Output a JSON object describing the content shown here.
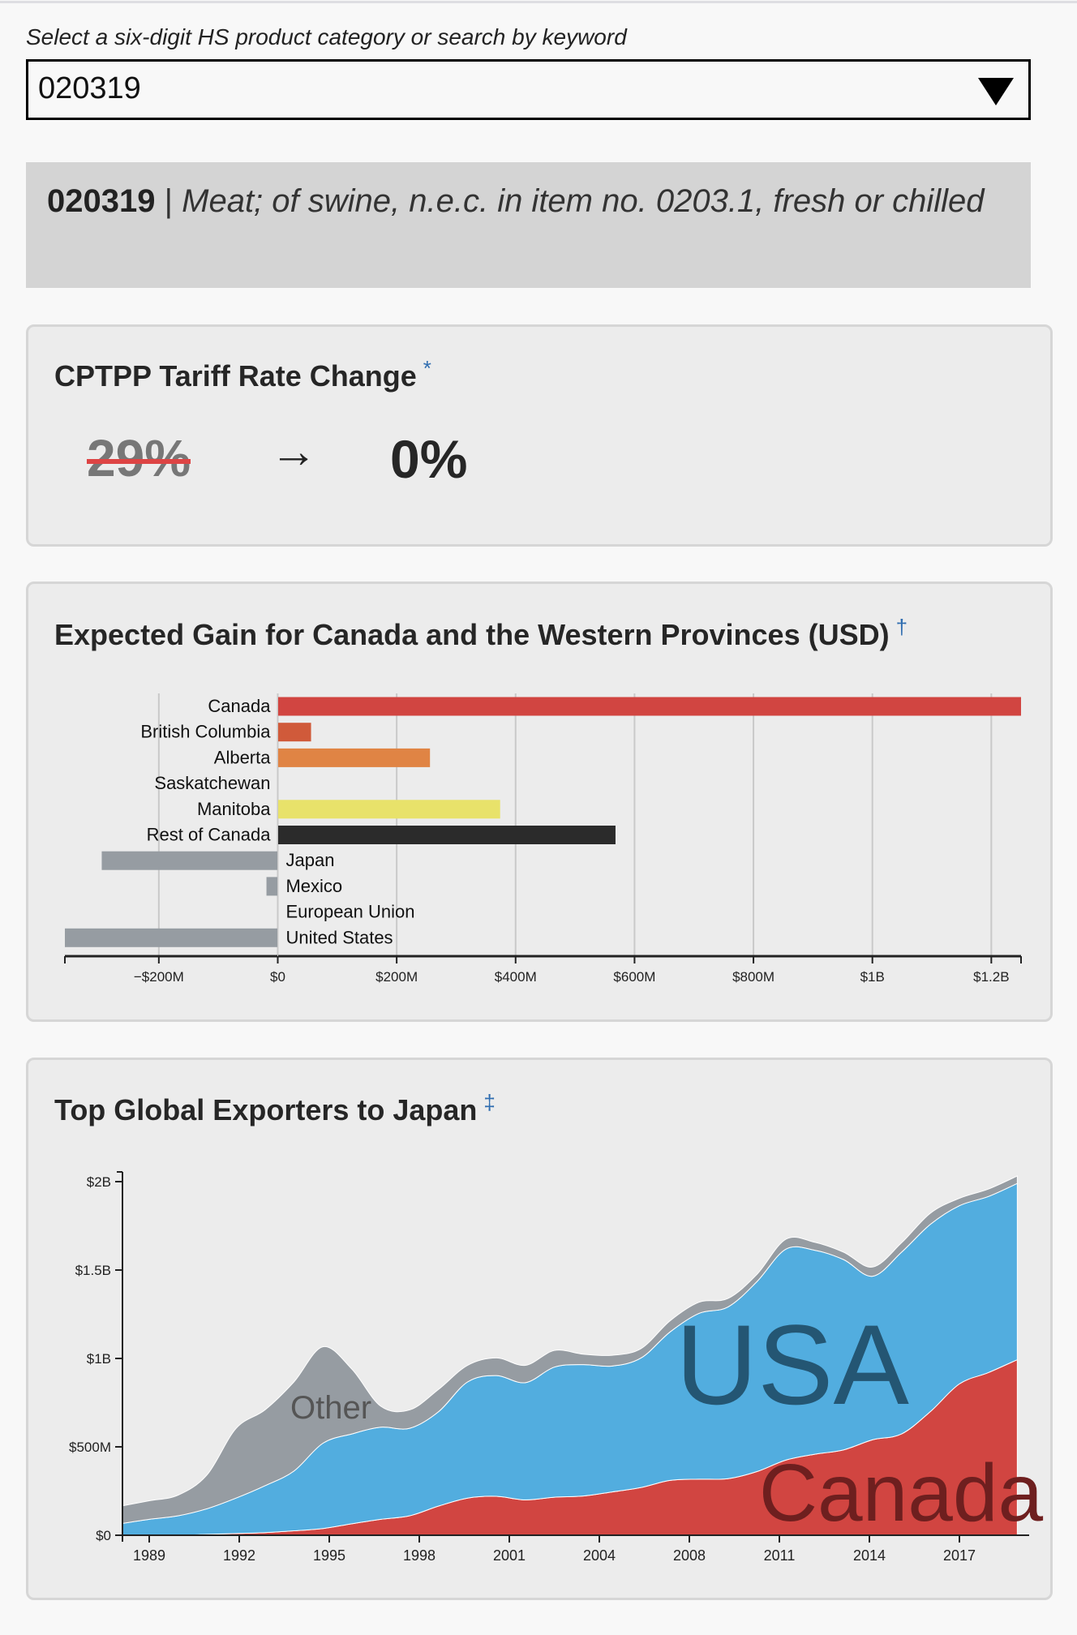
{
  "selector": {
    "label": "Select a six-digit HS product category or search by keyword",
    "value": "020319"
  },
  "product": {
    "code": "020319",
    "separator": "|",
    "description": "Meat; of swine, n.e.c. in item no. 0203.1, fresh or chilled"
  },
  "tariff_card": {
    "title": "CPTPP Tariff Rate Change",
    "note_mark": "*",
    "old_rate": "29%",
    "arrow": "→",
    "new_rate": "0%"
  },
  "gain_card": {
    "title": "Expected Gain for Canada and the Western Provinces (USD)",
    "note_mark": "†"
  },
  "exporters_card": {
    "title": "Top Global Exporters to Japan",
    "note_mark": "‡"
  },
  "colors": {
    "canada": "#d14541",
    "british_columbia": "#d05a3a",
    "alberta": "#e08444",
    "saskatchewan": "#e8b84a",
    "manitoba": "#e8e26a",
    "rest_of_canada": "#2b2b2b",
    "other_countries": "#969ca2",
    "usa": "#52addf",
    "usa_label": "#245673",
    "canada_label": "#6e1f1f",
    "other_label": "#555555"
  },
  "chart_data": [
    {
      "type": "bar",
      "orientation": "horizontal",
      "title": "Expected Gain for Canada and the Western Provinces (USD)",
      "categories": [
        "Canada",
        "British Columbia",
        "Alberta",
        "Saskatchewan",
        "Manitoba",
        "Rest of Canada",
        "Japan",
        "Mexico",
        "European Union",
        "United States"
      ],
      "values": [
        1250,
        56,
        256,
        0,
        374,
        568,
        -296,
        -19,
        0,
        -358
      ],
      "units": "USD millions",
      "color_keys": [
        "canada",
        "british_columbia",
        "alberta",
        "saskatchewan",
        "manitoba",
        "rest_of_canada",
        "other_countries",
        "other_countries",
        "other_countries",
        "other_countries"
      ],
      "xlim": [
        -358,
        1250
      ],
      "x_ticks": [
        -200,
        0,
        200,
        400,
        600,
        800,
        1000,
        1200
      ],
      "x_tick_labels": [
        "−$200M",
        "$0",
        "$200M",
        "$400M",
        "$600M",
        "$800M",
        "$1B",
        "$1.2B"
      ],
      "grid": "vertical"
    },
    {
      "type": "area",
      "stacked": true,
      "title": "Top Global Exporters to Japan",
      "x": [
        1988,
        1989,
        1990,
        1991,
        1992,
        1993,
        1994,
        1995,
        1996,
        1997,
        1998,
        1999,
        2000,
        2001,
        2002,
        2003,
        2004,
        2005,
        2006,
        2007,
        2008,
        2009,
        2010,
        2011,
        2012,
        2013,
        2014,
        2015,
        2016,
        2017,
        2018,
        2019
      ],
      "units": "USD millions",
      "series": [
        {
          "name": "Canada",
          "color_key": "canada",
          "values": [
            0,
            0,
            0,
            5,
            10,
            15,
            25,
            38,
            65,
            90,
            110,
            165,
            210,
            220,
            200,
            215,
            222,
            245,
            270,
            310,
            317,
            320,
            360,
            425,
            458,
            483,
            540,
            573,
            700,
            856,
            920,
            993
          ]
        },
        {
          "name": "USA",
          "color_key": "usa",
          "values": [
            65,
            90,
            110,
            145,
            200,
            265,
            338,
            482,
            508,
            521,
            495,
            534,
            657,
            683,
            663,
            736,
            743,
            712,
            733,
            840,
            938,
            971,
            1074,
            1193,
            1154,
            1076,
            925,
            1028,
            1059,
            1008,
            996,
            997
          ]
        },
        {
          "name": "Other",
          "color_key": "other_countries",
          "values": [
            99,
            105,
            117,
            192,
            394,
            429,
            504,
            546,
            367,
            119,
            104,
            126,
            94,
            100,
            98,
            94,
            59,
            61,
            53,
            63,
            63,
            48,
            41,
            56,
            45,
            42,
            52,
            53,
            63,
            42,
            42,
            42
          ]
        }
      ],
      "series_labels": [
        "Other",
        "USA",
        "Canada"
      ],
      "ylim": [
        0,
        2000
      ],
      "y_ticks": [
        0,
        500,
        1000,
        1500,
        2000
      ],
      "y_tick_labels": [
        "$0",
        "$500M",
        "$1B",
        "$1.5B",
        "$2B"
      ],
      "x_tick_labels": [
        "1989",
        "1992",
        "1995",
        "1998",
        "2001",
        "2004",
        "2008",
        "2011",
        "2014",
        "2017"
      ]
    }
  ]
}
